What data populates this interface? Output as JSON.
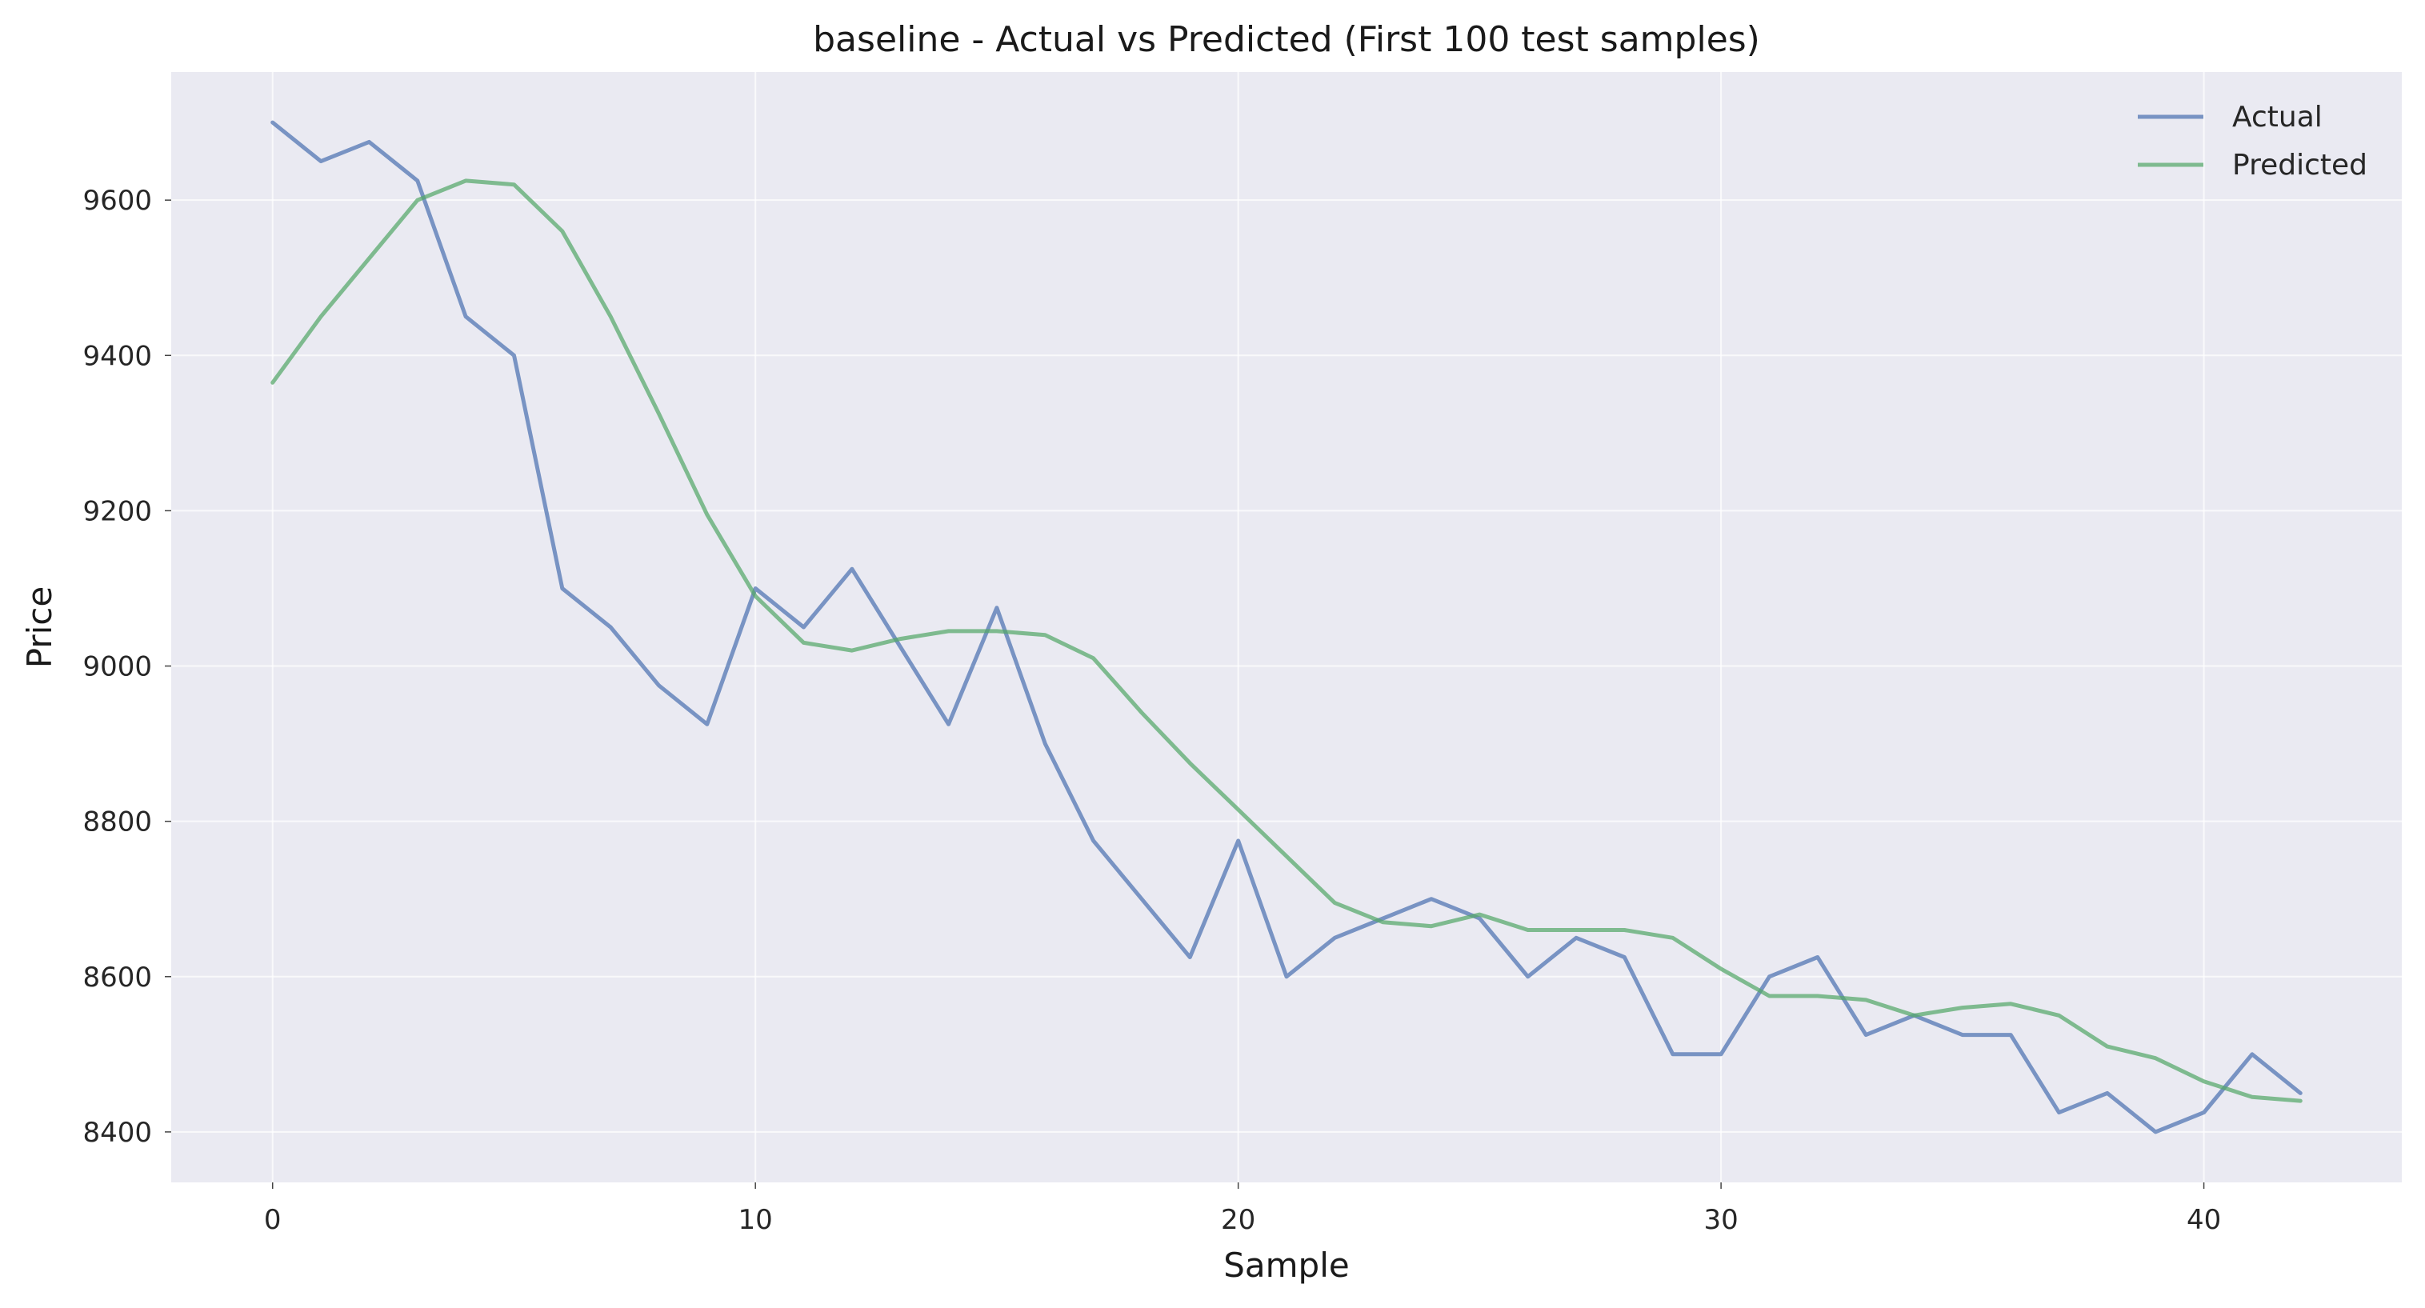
{
  "chart_data": {
    "type": "line",
    "title": "baseline - Actual vs Predicted (First 100 test samples)",
    "xlabel": "Sample",
    "ylabel": "Price",
    "xlim": [
      -2.1,
      44.1
    ],
    "ylim": [
      8335,
      9765
    ],
    "xticks": [
      0,
      10,
      20,
      30,
      40
    ],
    "yticks": [
      8400,
      8600,
      8800,
      9000,
      9200,
      9400,
      9600
    ],
    "grid": true,
    "legend_position": "top-right",
    "background_color": "#eaeaf2",
    "series": [
      {
        "name": "Actual",
        "color": "#4c72b0",
        "values": [
          9700,
          9650,
          9675,
          9625,
          9450,
          9400,
          9100,
          9050,
          8975,
          8925,
          9100,
          9050,
          9125,
          9025,
          8925,
          9075,
          8900,
          8775,
          8700,
          8625,
          8775,
          8600,
          8650,
          8675,
          8700,
          8675,
          8600,
          8650,
          8625,
          8500,
          8500,
          8600,
          8625,
          8525,
          8550,
          8525,
          8525,
          8425,
          8450,
          8400,
          8425,
          8500,
          8450
        ]
      },
      {
        "name": "Predicted",
        "color": "#55a868",
        "values": [
          9365,
          9450,
          9525,
          9600,
          9625,
          9620,
          9560,
          9450,
          9325,
          9195,
          9090,
          9030,
          9020,
          9035,
          9045,
          9045,
          9040,
          9010,
          8940,
          8875,
          8815,
          8755,
          8695,
          8670,
          8665,
          8680,
          8660,
          8660,
          8660,
          8650,
          8610,
          8575,
          8575,
          8570,
          8550,
          8560,
          8565,
          8550,
          8510,
          8495,
          8465,
          8445,
          8440
        ]
      }
    ]
  }
}
